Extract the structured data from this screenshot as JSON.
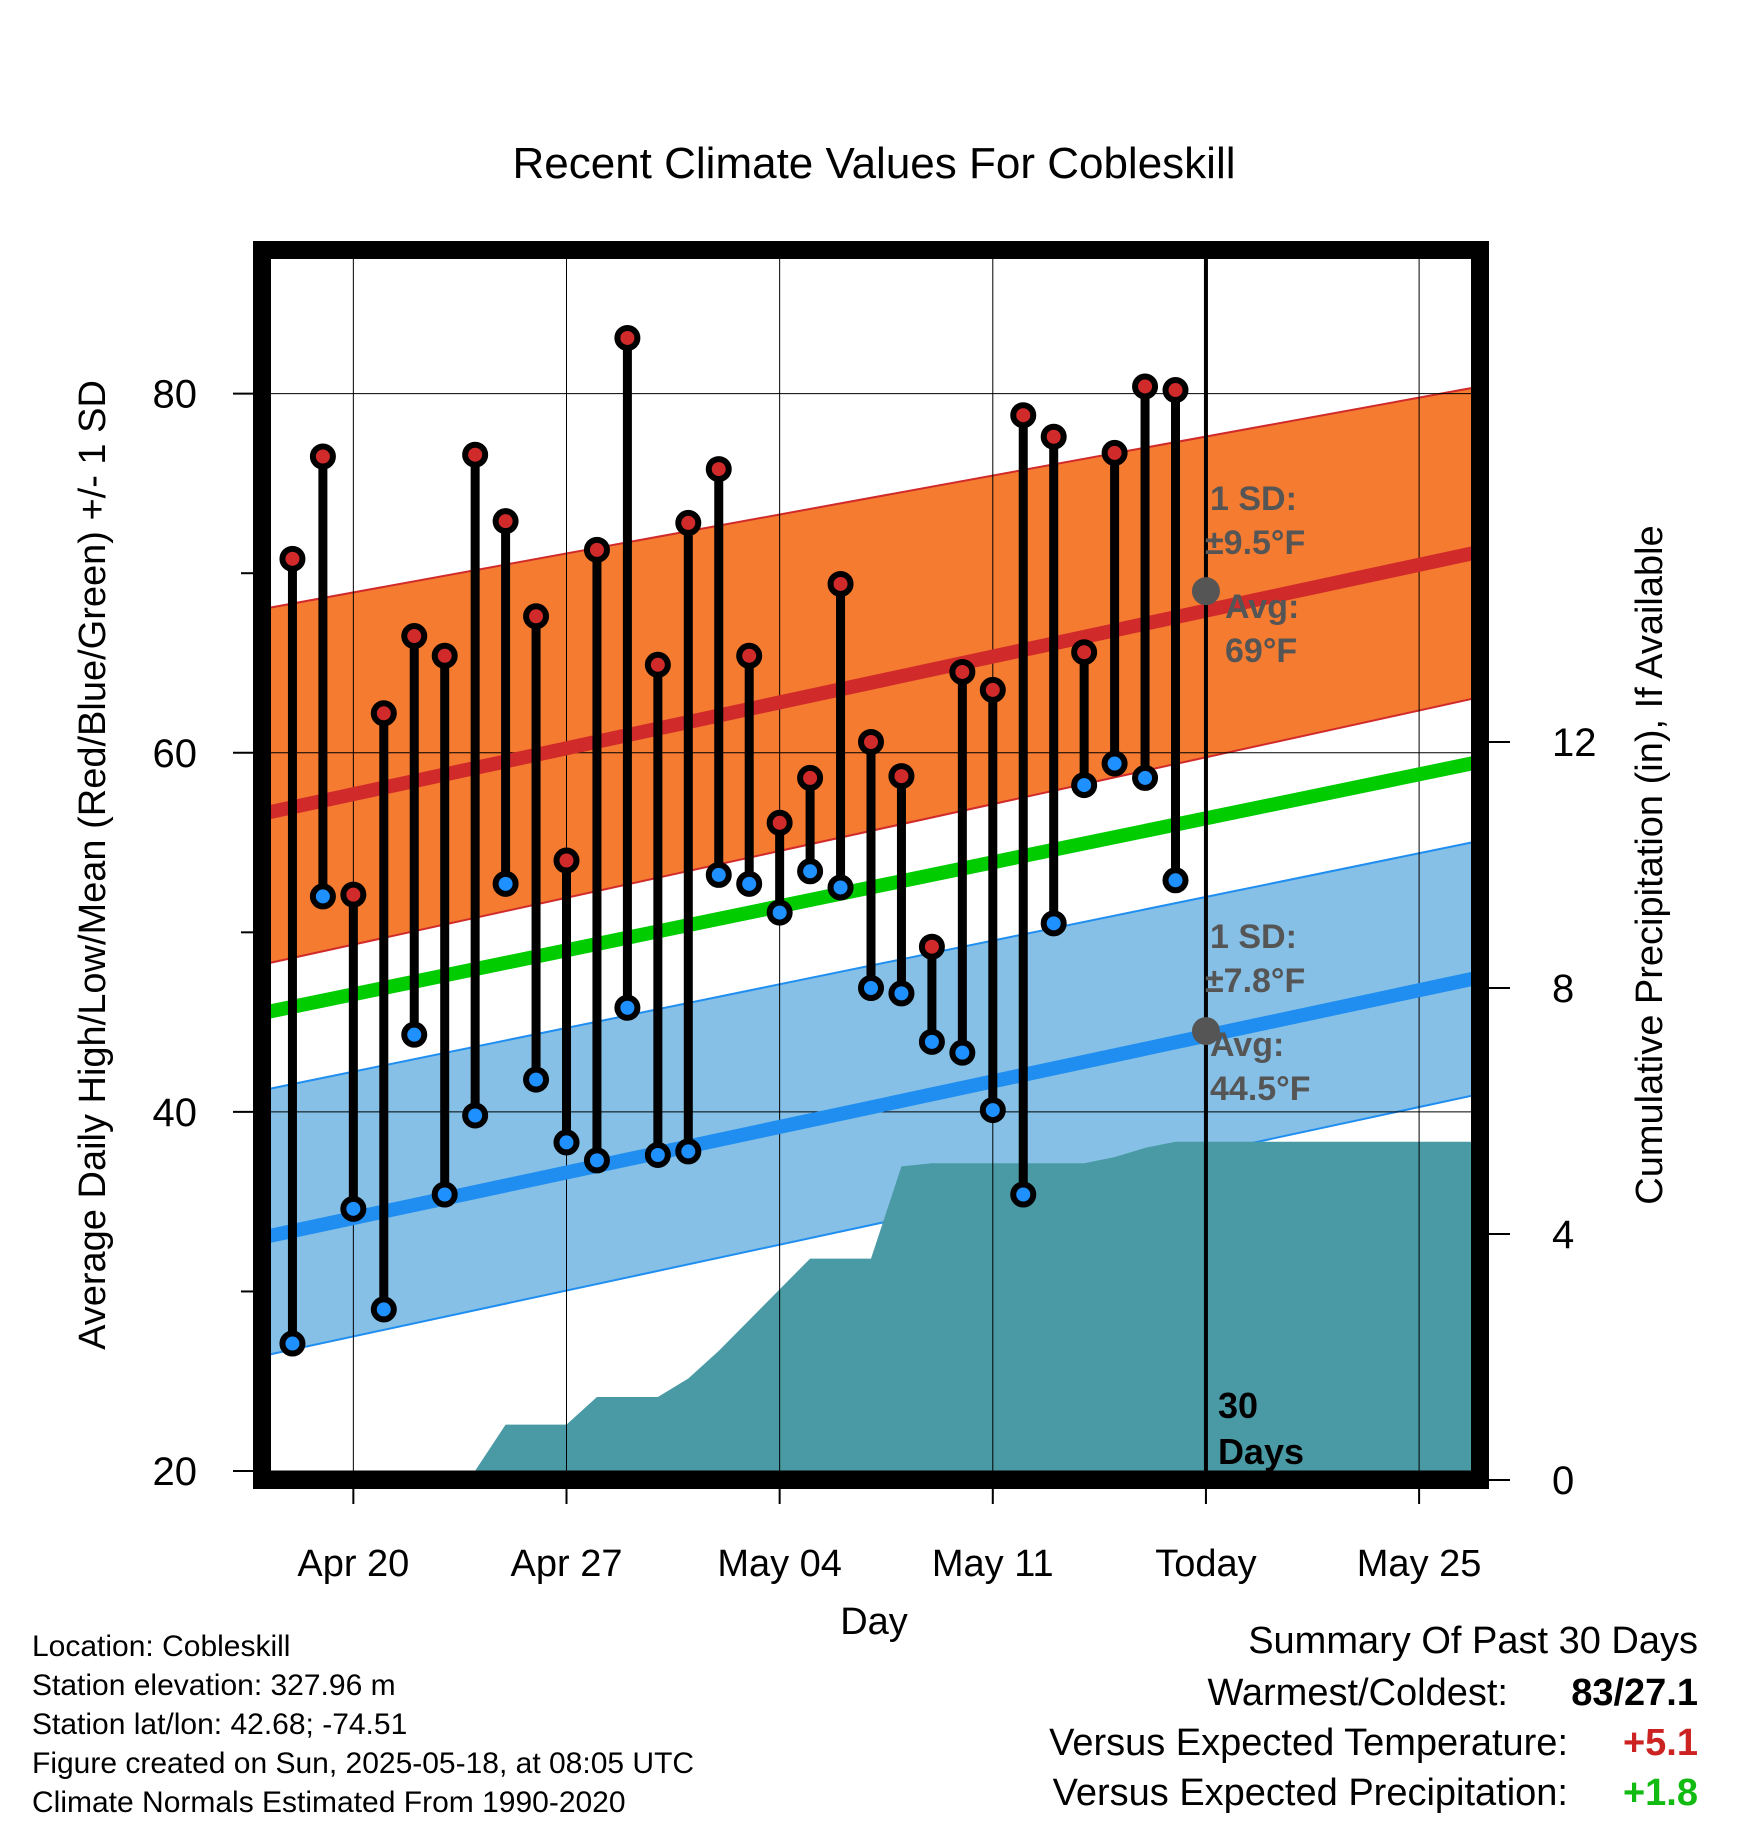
{
  "chart_data": {
    "type": "line",
    "title": "Recent Climate Values For Cobleskill",
    "xlabel": "Day",
    "ylabel": "Average Daily High/Low/Mean (Red/Blue/Green) +/- 1 SD",
    "y2label": "Cumulative Precipitation (in), If Available",
    "x_range": [
      "Apr 17",
      "May 27"
    ],
    "x_ticks": [
      "Apr 20",
      "Apr 27",
      "May 04",
      "May 11",
      "Today",
      "May 25"
    ],
    "ylim": [
      19.5,
      88
    ],
    "y_ticks": [
      20,
      40,
      60,
      80
    ],
    "y2lim": [
      0,
      20
    ],
    "y2_ticks": [
      0,
      4,
      8,
      12
    ],
    "today": "May 18",
    "today_label": "30\nDays",
    "grid": true,
    "observations": {
      "dates": [
        "Apr 18",
        "Apr 19",
        "Apr 20",
        "Apr 21",
        "Apr 22",
        "Apr 23",
        "Apr 24",
        "Apr 25",
        "Apr 26",
        "Apr 27",
        "Apr 28",
        "Apr 29",
        "Apr 30",
        "May 01",
        "May 02",
        "May 03",
        "May 04",
        "May 05",
        "May 06",
        "May 07",
        "May 08",
        "May 09",
        "May 10",
        "May 11",
        "May 12",
        "May 13",
        "May 14",
        "May 15",
        "May 16",
        "May 17"
      ],
      "high": [
        70.8,
        76.5,
        52.1,
        62.2,
        66.5,
        65.4,
        76.6,
        72.9,
        67.6,
        54,
        71.3,
        83.1,
        64.9,
        72.8,
        75.8,
        65.4,
        56.1,
        58.6,
        69.4,
        60.6,
        58.7,
        49.2,
        64.5,
        63.5,
        78.8,
        77.6,
        65.6,
        76.7,
        80.4,
        80.2
      ],
      "low": [
        27.1,
        52,
        34.6,
        29,
        44.3,
        35.4,
        39.8,
        52.7,
        41.8,
        38.3,
        37.3,
        45.8,
        37.6,
        37.8,
        53.2,
        52.7,
        51.1,
        53.4,
        52.5,
        46.9,
        46.6,
        43.9,
        43.3,
        40.1,
        35.4,
        50.5,
        58.2,
        59.4,
        58.6,
        52.9
      ]
    },
    "normals": {
      "dates": [
        "Apr 17",
        "May 27"
      ],
      "avg_high": [
        56.6,
        71.2
      ],
      "high_sd_band": [
        [
          48.2,
          68
        ],
        [
          63.1,
          80.4
        ]
      ],
      "avg_low": [
        33,
        47.5
      ],
      "low_sd_band": [
        [
          26.4,
          41.2
        ],
        [
          41,
          55.1
        ]
      ],
      "avg_mean": [
        45.5,
        59.5
      ]
    },
    "precipitation": {
      "dates": [
        "Apr 17",
        "Apr 19",
        "Apr 22",
        "Apr 24",
        "Apr 25",
        "Apr 26",
        "Apr 27",
        "Apr 28",
        "Apr 29",
        "Apr 30",
        "May 01",
        "May 02",
        "May 03",
        "May 04",
        "May 05",
        "May 06",
        "May 07",
        "May 08",
        "May 09",
        "May 10",
        "May 11",
        "May 12",
        "May 13",
        "May 14",
        "May 15",
        "May 16",
        "May 17",
        "May 27"
      ],
      "cumulative": [
        0.05,
        0.05,
        0.1,
        0.15,
        0.9,
        0.9,
        0.9,
        1.35,
        1.35,
        1.35,
        1.65,
        2.1,
        2.6,
        3.1,
        3.6,
        3.6,
        3.6,
        5.1,
        5.15,
        5.15,
        5.15,
        5.15,
        5.15,
        5.15,
        5.25,
        5.4,
        5.5,
        5.5
      ]
    },
    "annotations": {
      "high_sd_label": "1 SD:",
      "high_sd_value": "±9.5°F",
      "high_avg_label": "Avg:",
      "high_avg_value": "69°F",
      "low_sd_label": "1 SD:",
      "low_sd_value": "±7.8°F",
      "low_avg_label": "Avg:",
      "low_avg_value": "44.5°F",
      "today_high_avg": 69,
      "today_low_avg": 44.5
    },
    "colors": {
      "high_band": "#f47b30",
      "high_line": "#d12a2a",
      "low_band": "#86c0e6",
      "low_line": "#1f8ef0",
      "mean_line": "#00cc00",
      "precip": "#4a9aa5",
      "high_marker": "#d12a2a",
      "low_marker": "#1e90ff",
      "annotation_text": "#555555"
    }
  },
  "footer": {
    "location": "Location: Cobleskill",
    "elevation": "Station elevation: 327.96 m",
    "latlon": "Station lat/lon: 42.68; -74.51",
    "created": "Figure created on Sun, 2025-05-18, at 08:05 UTC",
    "normals": "Climate Normals Estimated From 1990-2020"
  },
  "summary": {
    "title": "Summary Of Past 30 Days",
    "warmest_coldest_label": "Warmest/Coldest:",
    "warmest_coldest_value": "83/27.1",
    "temp_label": "Versus Expected Temperature:",
    "temp_value": "+5.1",
    "temp_color": "#cc2222",
    "precip_label": "Versus Expected Precipitation:",
    "precip_value": "+1.8",
    "precip_color": "#11bb11"
  }
}
